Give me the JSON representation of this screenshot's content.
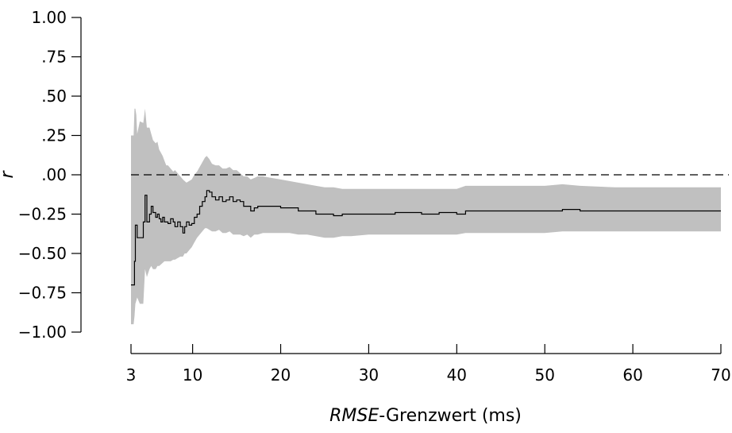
{
  "chart_data": {
    "type": "line",
    "title": "",
    "xlabel_italic": "RMSE",
    "xlabel_rest": "-Grenzwert (ms)",
    "ylabel": "r",
    "xlim": [
      3,
      70
    ],
    "ylim": [
      -1.0,
      1.0
    ],
    "x_ticks": [
      3,
      10,
      20,
      30,
      40,
      50,
      60,
      70
    ],
    "x_tick_labels": [
      "3",
      "10",
      "20",
      "30",
      "40",
      "50",
      "60",
      "70"
    ],
    "y_ticks": [
      1.0,
      0.75,
      0.5,
      0.25,
      0.0,
      -0.25,
      -0.5,
      -0.75,
      -1.0
    ],
    "y_tick_labels": [
      "1.00",
      ".75",
      ".50",
      ".25",
      ".00",
      "−0.25",
      "−0.50",
      "−0.75",
      "−1.00"
    ],
    "reference_line": {
      "y": 0.0,
      "style": "dashed"
    },
    "colors": {
      "line": "#000000",
      "band": "#c0c0c0",
      "axis": "#000000"
    },
    "series": [
      {
        "x": [
          3.0,
          3.3,
          3.4,
          3.5,
          3.6,
          3.7,
          4.0,
          4.4,
          4.6,
          4.8,
          5.1,
          5.3,
          5.5,
          5.8,
          6.0,
          6.2,
          6.4,
          6.6,
          6.8,
          7.0,
          7.2,
          7.5,
          7.8,
          8.0,
          8.3,
          8.6,
          8.9,
          9.1,
          9.3,
          9.6,
          9.9,
          10.2,
          10.5,
          10.8,
          11.1,
          11.4,
          11.6,
          11.9,
          12.2,
          12.6,
          13.0,
          13.4,
          13.8,
          14.2,
          14.6,
          15.0,
          15.4,
          15.8,
          16.2,
          16.6,
          17.0,
          17.4,
          18.0,
          19.0,
          20.0,
          21.0,
          22.0,
          23.0,
          24.0,
          25.0,
          26.0,
          27.0,
          28.0,
          30.0,
          33.0,
          36.0,
          38.0,
          40.0,
          41.0,
          45.0,
          50.0,
          52.0,
          54.0,
          58.0,
          62.0,
          66.0,
          70.0
        ],
        "r": [
          -0.7,
          -0.7,
          -0.55,
          -0.32,
          -0.32,
          -0.4,
          -0.4,
          -0.3,
          -0.13,
          -0.3,
          -0.25,
          -0.2,
          -0.24,
          -0.27,
          -0.25,
          -0.28,
          -0.3,
          -0.27,
          -0.3,
          -0.3,
          -0.31,
          -0.28,
          -0.3,
          -0.33,
          -0.3,
          -0.33,
          -0.37,
          -0.33,
          -0.3,
          -0.32,
          -0.31,
          -0.27,
          -0.25,
          -0.2,
          -0.17,
          -0.14,
          -0.1,
          -0.11,
          -0.14,
          -0.16,
          -0.14,
          -0.17,
          -0.16,
          -0.14,
          -0.17,
          -0.16,
          -0.17,
          -0.2,
          -0.2,
          -0.23,
          -0.21,
          -0.2,
          -0.2,
          -0.2,
          -0.21,
          -0.21,
          -0.23,
          -0.23,
          -0.25,
          -0.25,
          -0.26,
          -0.25,
          -0.25,
          -0.25,
          -0.24,
          -0.25,
          -0.24,
          -0.25,
          -0.23,
          -0.23,
          -0.23,
          -0.22,
          -0.23,
          -0.23,
          -0.23,
          -0.23,
          -0.23
        ],
        "ci_upper": [
          0.25,
          0.25,
          0.42,
          0.42,
          0.38,
          0.26,
          0.34,
          0.33,
          0.42,
          0.3,
          0.3,
          0.26,
          0.22,
          0.2,
          0.21,
          0.16,
          0.14,
          0.12,
          0.09,
          0.06,
          0.06,
          0.04,
          0.02,
          0.03,
          0.01,
          -0.01,
          -0.03,
          -0.04,
          -0.05,
          -0.04,
          -0.03,
          0.0,
          0.02,
          0.05,
          0.08,
          0.11,
          0.12,
          0.1,
          0.07,
          0.06,
          0.06,
          0.04,
          0.04,
          0.05,
          0.03,
          0.03,
          0.01,
          -0.01,
          -0.01,
          -0.03,
          -0.02,
          -0.01,
          -0.01,
          -0.02,
          -0.03,
          -0.04,
          -0.05,
          -0.06,
          -0.07,
          -0.08,
          -0.08,
          -0.09,
          -0.09,
          -0.09,
          -0.09,
          -0.09,
          -0.09,
          -0.09,
          -0.07,
          -0.07,
          -0.07,
          -0.06,
          -0.07,
          -0.08,
          -0.08,
          -0.08,
          -0.08
        ],
        "ci_lower": [
          -0.95,
          -0.95,
          -0.9,
          -0.82,
          -0.8,
          -0.78,
          -0.82,
          -0.82,
          -0.6,
          -0.65,
          -0.6,
          -0.58,
          -0.6,
          -0.6,
          -0.58,
          -0.58,
          -0.57,
          -0.56,
          -0.55,
          -0.55,
          -0.55,
          -0.55,
          -0.54,
          -0.54,
          -0.53,
          -0.52,
          -0.52,
          -0.5,
          -0.5,
          -0.48,
          -0.46,
          -0.43,
          -0.4,
          -0.38,
          -0.36,
          -0.34,
          -0.34,
          -0.35,
          -0.36,
          -0.36,
          -0.35,
          -0.37,
          -0.37,
          -0.36,
          -0.38,
          -0.38,
          -0.38,
          -0.39,
          -0.38,
          -0.4,
          -0.38,
          -0.38,
          -0.37,
          -0.37,
          -0.37,
          -0.37,
          -0.38,
          -0.38,
          -0.39,
          -0.4,
          -0.4,
          -0.39,
          -0.39,
          -0.38,
          -0.38,
          -0.38,
          -0.38,
          -0.38,
          -0.37,
          -0.37,
          -0.37,
          -0.36,
          -0.36,
          -0.36,
          -0.36,
          -0.36,
          -0.36
        ]
      }
    ]
  }
}
